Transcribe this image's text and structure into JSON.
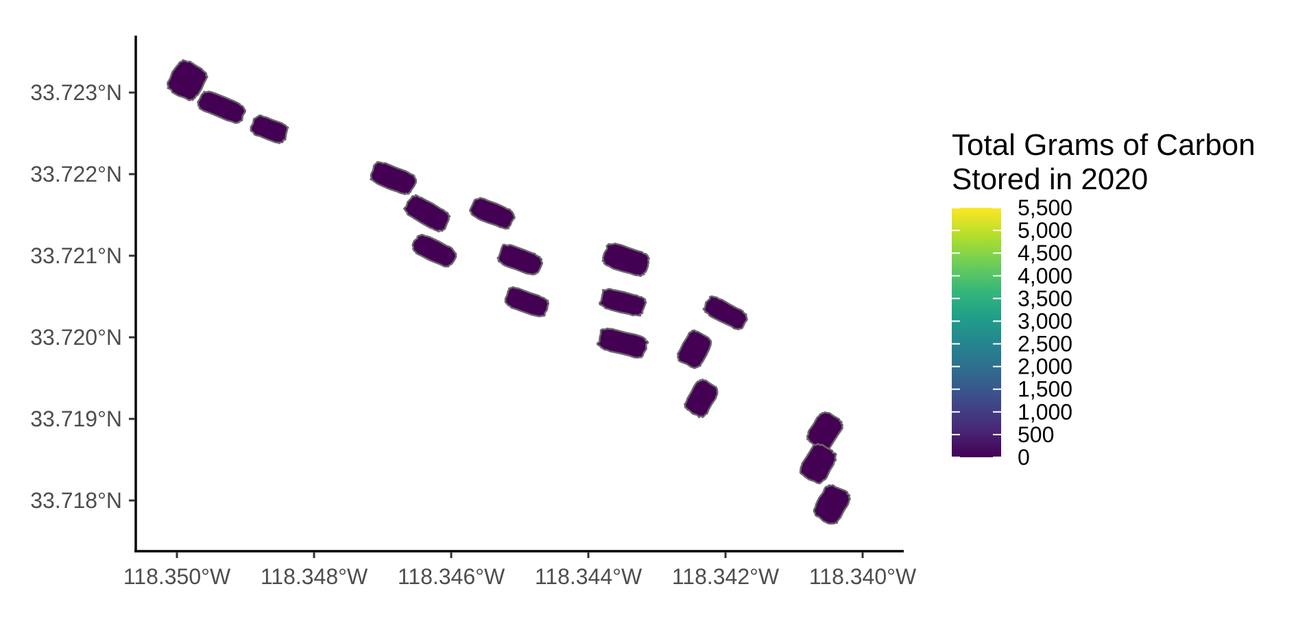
{
  "chart_data": {
    "type": "map",
    "title": "",
    "xlabel": "",
    "ylabel": "",
    "xlim": [
      -118.3506,
      -118.3392
    ],
    "ylim": [
      33.7175,
      33.7236
    ],
    "x_ticks": [
      {
        "value": -118.35,
        "label": "118.350°W"
      },
      {
        "value": -118.348,
        "label": "118.348°W"
      },
      {
        "value": -118.346,
        "label": "118.346°W"
      },
      {
        "value": -118.344,
        "label": "118.344°W"
      },
      {
        "value": -118.342,
        "label": "118.342°W"
      },
      {
        "value": -118.34,
        "label": "118.340°W"
      }
    ],
    "y_ticks": [
      {
        "value": 33.723,
        "label": "33.723°N"
      },
      {
        "value": 33.722,
        "label": "33.722°N"
      },
      {
        "value": 33.721,
        "label": "33.721°N"
      },
      {
        "value": 33.72,
        "label": "33.720°N"
      },
      {
        "value": 33.719,
        "label": "33.719°N"
      },
      {
        "value": 33.718,
        "label": "33.718°N"
      }
    ],
    "grid": false,
    "fill_color": "#440154",
    "parcels": [
      {
        "lon": -118.34985,
        "lat": 33.72315,
        "w": 0.0005,
        "h": 0.0004,
        "angle": -60,
        "carbon": 0
      },
      {
        "lon": -118.34935,
        "lat": 33.72282,
        "w": 0.00068,
        "h": 0.00025,
        "angle": 22,
        "carbon": 0
      },
      {
        "lon": -118.34865,
        "lat": 33.72255,
        "w": 0.00052,
        "h": 0.00025,
        "angle": 20,
        "carbon": 0
      },
      {
        "lon": -118.34685,
        "lat": 33.72195,
        "w": 0.00065,
        "h": 0.00027,
        "angle": 22,
        "carbon": 0
      },
      {
        "lon": -118.34635,
        "lat": 33.72152,
        "w": 0.00065,
        "h": 0.00027,
        "angle": 30,
        "carbon": 0
      },
      {
        "lon": -118.34625,
        "lat": 33.72106,
        "w": 0.00063,
        "h": 0.00025,
        "angle": 26,
        "carbon": 0
      },
      {
        "lon": -118.3454,
        "lat": 33.72152,
        "w": 0.00063,
        "h": 0.00025,
        "angle": 22,
        "carbon": 0
      },
      {
        "lon": -118.345,
        "lat": 33.72095,
        "w": 0.00063,
        "h": 0.00026,
        "angle": 20,
        "carbon": 0
      },
      {
        "lon": -118.3449,
        "lat": 33.72043,
        "w": 0.00063,
        "h": 0.00025,
        "angle": 20,
        "carbon": 0
      },
      {
        "lon": -118.34345,
        "lat": 33.72095,
        "w": 0.00065,
        "h": 0.0003,
        "angle": 18,
        "carbon": 0
      },
      {
        "lon": -118.3435,
        "lat": 33.72043,
        "w": 0.00065,
        "h": 0.00025,
        "angle": 14,
        "carbon": 0
      },
      {
        "lon": -118.3435,
        "lat": 33.71993,
        "w": 0.0007,
        "h": 0.00027,
        "angle": 14,
        "carbon": 0
      },
      {
        "lon": -118.34245,
        "lat": 33.71985,
        "w": 0.0005,
        "h": 0.00032,
        "angle": -62,
        "carbon": 0
      },
      {
        "lon": -118.342,
        "lat": 33.7203,
        "w": 0.00063,
        "h": 0.00024,
        "angle": 28,
        "carbon": 0
      },
      {
        "lon": -118.34235,
        "lat": 33.71925,
        "w": 0.0005,
        "h": 0.0003,
        "angle": -60,
        "carbon": 0
      },
      {
        "lon": -118.34055,
        "lat": 33.71885,
        "w": 0.0005,
        "h": 0.00033,
        "angle": -58,
        "carbon": 0
      },
      {
        "lon": -118.34065,
        "lat": 33.71845,
        "w": 0.00052,
        "h": 0.00034,
        "angle": -60,
        "carbon": 0
      },
      {
        "lon": -118.34045,
        "lat": 33.71795,
        "w": 0.00052,
        "h": 0.00034,
        "angle": -62,
        "carbon": 0
      }
    ],
    "legend": {
      "title_line1": "Total Grams of Carbon",
      "title_line2": "Stored in 2020",
      "position": "right",
      "min": 0,
      "max": 5500,
      "breaks": [
        {
          "value": 0,
          "label": "0"
        },
        {
          "value": 500,
          "label": "500"
        },
        {
          "value": 1000,
          "label": "1,000"
        },
        {
          "value": 1500,
          "label": "1,500"
        },
        {
          "value": 2000,
          "label": "2,000"
        },
        {
          "value": 2500,
          "label": "2,500"
        },
        {
          "value": 3000,
          "label": "3,000"
        },
        {
          "value": 3500,
          "label": "3,500"
        },
        {
          "value": 4000,
          "label": "4,000"
        },
        {
          "value": 4500,
          "label": "4,500"
        },
        {
          "value": 5000,
          "label": "5,000"
        },
        {
          "value": 5500,
          "label": "5,500"
        }
      ],
      "colors": [
        "#440154",
        "#482878",
        "#3e4989",
        "#31688e",
        "#26828e",
        "#1f9e89",
        "#35b779",
        "#6ece58",
        "#b5de2b",
        "#fde725"
      ]
    }
  }
}
